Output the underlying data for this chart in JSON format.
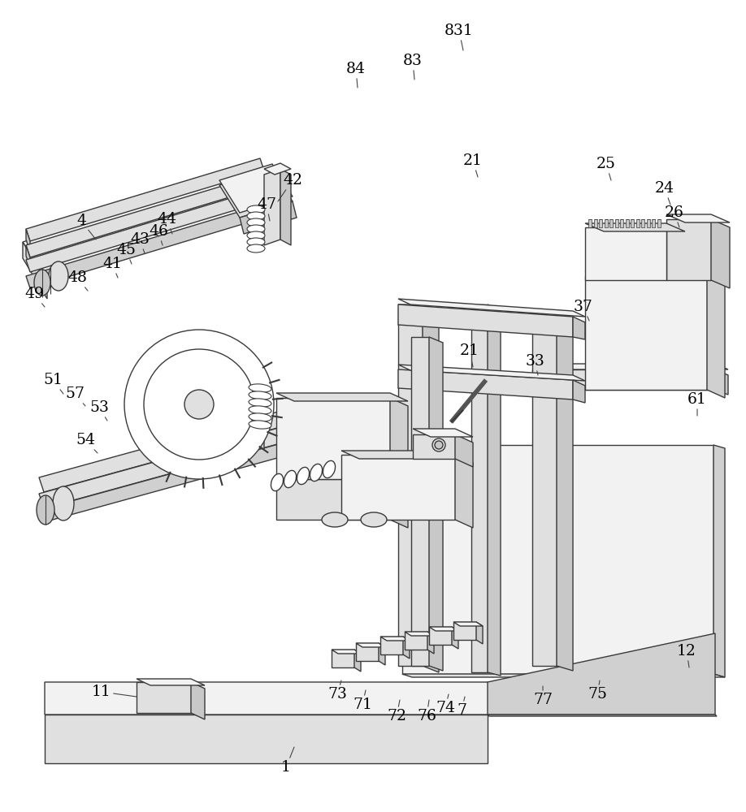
{
  "bg_color": "#ffffff",
  "line_color": "#3a3a3a",
  "lw": 1.0,
  "figsize": [
    9.18,
    10.0
  ],
  "dpi": 100,
  "labels": [
    [
      "831",
      565,
      38
    ],
    [
      "83",
      508,
      78
    ],
    [
      "84",
      440,
      88
    ],
    [
      "4",
      105,
      278
    ],
    [
      "42",
      358,
      228
    ],
    [
      "47",
      330,
      258
    ],
    [
      "44",
      207,
      275
    ],
    [
      "46",
      197,
      288
    ],
    [
      "43",
      174,
      298
    ],
    [
      "45",
      157,
      310
    ],
    [
      "41",
      140,
      330
    ],
    [
      "48",
      100,
      348
    ],
    [
      "49",
      45,
      368
    ],
    [
      "51",
      68,
      472
    ],
    [
      "57",
      95,
      490
    ],
    [
      "53",
      125,
      508
    ],
    [
      "54",
      110,
      548
    ],
    [
      "21",
      585,
      202
    ],
    [
      "25",
      748,
      205
    ],
    [
      "24",
      820,
      238
    ],
    [
      "26",
      832,
      268
    ],
    [
      "37",
      722,
      382
    ],
    [
      "21",
      582,
      438
    ],
    [
      "33",
      662,
      452
    ],
    [
      "61",
      862,
      498
    ],
    [
      "12",
      848,
      808
    ],
    [
      "11",
      128,
      858
    ],
    [
      "7",
      572,
      882
    ],
    [
      "77",
      672,
      868
    ],
    [
      "75",
      738,
      862
    ],
    [
      "74",
      552,
      878
    ],
    [
      "76",
      528,
      888
    ],
    [
      "72",
      492,
      888
    ],
    [
      "71",
      450,
      875
    ],
    [
      "73",
      418,
      862
    ],
    [
      "1",
      355,
      952
    ]
  ]
}
